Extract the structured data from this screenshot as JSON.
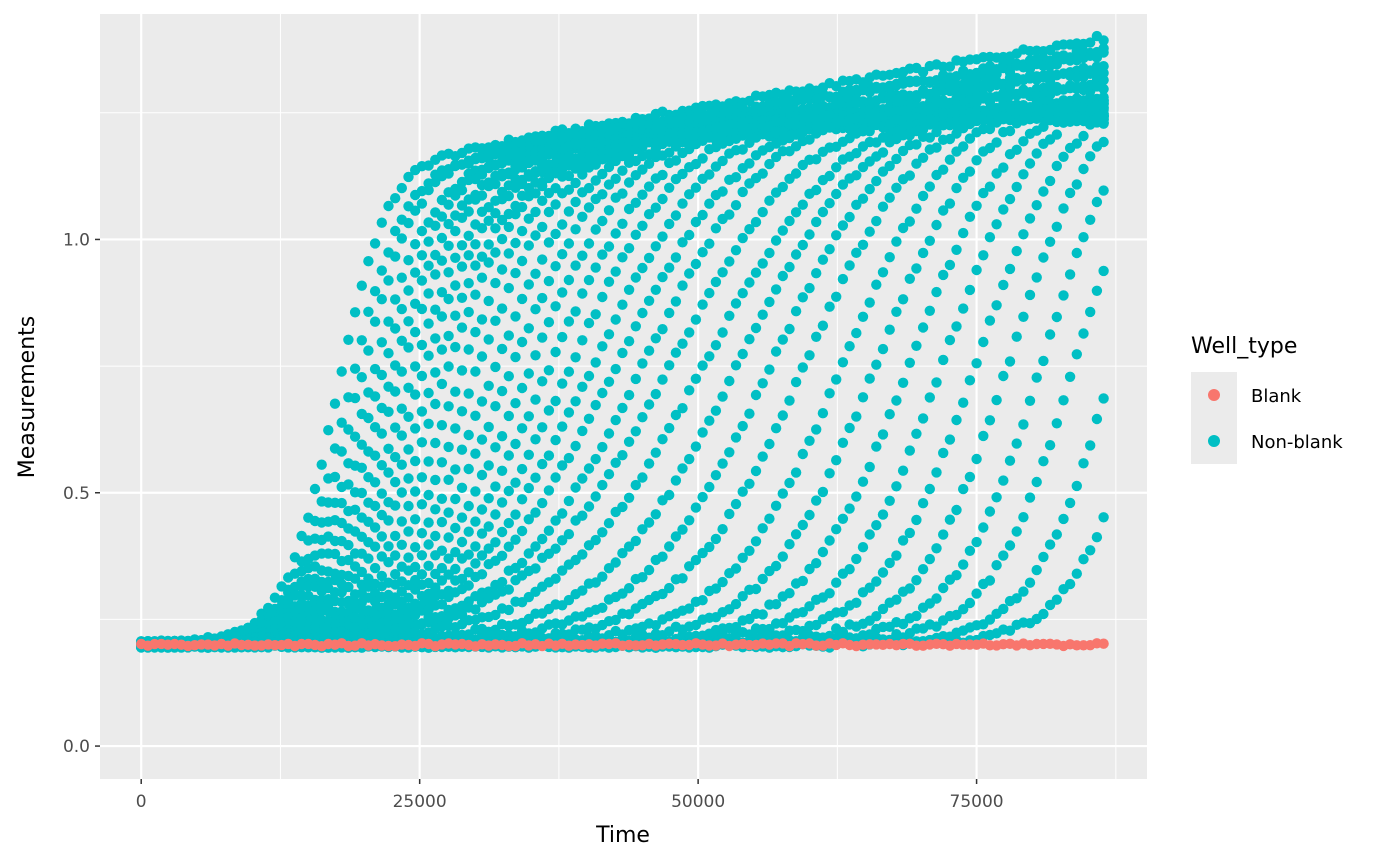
{
  "chart_data": {
    "type": "scatter",
    "title": "",
    "xlabel": "Time",
    "ylabel": "Measurements",
    "xlim": [
      -3700,
      90300
    ],
    "ylim": [
      -0.065,
      1.445
    ],
    "x_ticks": [
      0,
      25000,
      50000,
      75000
    ],
    "x_tick_labels": [
      "0",
      "25000",
      "50000",
      "75000"
    ],
    "y_ticks": [
      0.0,
      0.5,
      1.0
    ],
    "y_tick_labels": [
      "0.0",
      "0.5",
      "1.0"
    ],
    "grid": true,
    "panel_background": "#ebebeb",
    "grid_color": "#ffffff",
    "legend": {
      "title": "Well_type",
      "position": "right",
      "entries": [
        {
          "label": "Blank",
          "color": "#f8766d"
        },
        {
          "label": "Non-blank",
          "color": "#00bfc4"
        }
      ]
    },
    "sampling": {
      "start": 0,
      "end": 86700,
      "step": 600
    },
    "series": [
      {
        "name": "Non-blank",
        "color": "#00bfc4",
        "baseline": 0.2,
        "curves": [
          {
            "midpoint": 17500,
            "rate": 0.00042,
            "plateau": 1.18,
            "tail": 1.41
          },
          {
            "midpoint": 18500,
            "rate": 0.00038,
            "plateau": 1.17,
            "tail": 1.39
          },
          {
            "midpoint": 19300,
            "rate": 0.00036,
            "plateau": 1.18,
            "tail": 1.38
          },
          {
            "midpoint": 20200,
            "rate": 0.00033,
            "plateau": 1.17,
            "tail": 1.36
          },
          {
            "midpoint": 21000,
            "rate": 0.00031,
            "plateau": 1.18,
            "tail": 1.35
          },
          {
            "midpoint": 21800,
            "rate": 0.0003,
            "plateau": 1.17,
            "tail": 1.33
          },
          {
            "midpoint": 22700,
            "rate": 0.00029,
            "plateau": 1.18,
            "tail": 1.32
          },
          {
            "midpoint": 23600,
            "rate": 0.00028,
            "plateau": 1.17,
            "tail": 1.3
          },
          {
            "midpoint": 24600,
            "rate": 0.00027,
            "plateau": 1.18,
            "tail": 1.29
          },
          {
            "midpoint": 25600,
            "rate": 0.00026,
            "plateau": 1.18,
            "tail": 1.28
          },
          {
            "midpoint": 26800,
            "rate": 0.00025,
            "plateau": 1.2,
            "tail": 1.27
          },
          {
            "midpoint": 28200,
            "rate": 0.00024,
            "plateau": 1.21,
            "tail": 1.26
          },
          {
            "midpoint": 29600,
            "rate": 0.00023,
            "plateau": 1.22,
            "tail": 1.26
          },
          {
            "midpoint": 31200,
            "rate": 0.00022,
            "plateau": 1.23,
            "tail": 1.25
          },
          {
            "midpoint": 32800,
            "rate": 0.00021,
            "plateau": 1.24,
            "tail": 1.24
          },
          {
            "midpoint": 34500,
            "rate": 0.0002,
            "plateau": 1.25,
            "tail": 1.23
          },
          {
            "midpoint": 36300,
            "rate": 0.00019,
            "plateau": 1.26,
            "tail": 1.22
          },
          {
            "midpoint": 38200,
            "rate": 0.00018,
            "plateau": 1.27,
            "tail": 1.21
          },
          {
            "midpoint": 40300,
            "rate": 0.00017,
            "plateau": 1.28,
            "tail": 1.2
          },
          {
            "midpoint": 42500,
            "rate": 0.00016,
            "plateau": 1.29,
            "tail": 1.19
          },
          {
            "midpoint": 45000,
            "rate": 0.00016,
            "plateau": 1.3,
            "tail": 1.18
          },
          {
            "midpoint": 47500,
            "rate": 0.00015,
            "plateau": 1.3,
            "tail": 1.17
          },
          {
            "midpoint": 50500,
            "rate": 0.00015,
            "plateau": 1.3,
            "tail": 1.17
          },
          {
            "midpoint": 53500,
            "rate": 0.00016,
            "plateau": 1.3,
            "tail": 1.17
          },
          {
            "midpoint": 56500,
            "rate": 0.00017,
            "plateau": 1.3,
            "tail": 1.17
          },
          {
            "midpoint": 59500,
            "rate": 0.00018,
            "plateau": 1.3,
            "tail": 1.17
          },
          {
            "midpoint": 63000,
            "rate": 0.00019,
            "plateau": 1.31,
            "tail": 1.17
          },
          {
            "midpoint": 66000,
            "rate": 0.0002,
            "plateau": 1.31,
            "tail": 1.17
          },
          {
            "midpoint": 69000,
            "rate": 0.00021,
            "plateau": 1.31,
            "tail": 1.17
          },
          {
            "midpoint": 72000,
            "rate": 0.00022,
            "plateau": 1.32,
            "tail": 1.17
          },
          {
            "midpoint": 75000,
            "rate": 0.00023,
            "plateau": 1.32,
            "tail": 1.17
          },
          {
            "midpoint": 78000,
            "rate": 0.00024,
            "plateau": 1.33,
            "tail": 1.17
          },
          {
            "midpoint": 81000,
            "rate": 0.00025,
            "plateau": 1.33,
            "tail": 1.17
          },
          {
            "midpoint": 84000,
            "rate": 0.00026,
            "plateau": 1.34,
            "tail": 1.17
          },
          {
            "midpoint": 87500,
            "rate": 0.00027,
            "plateau": 1.34,
            "tail": 1.17
          },
          {
            "midpoint": 91000,
            "rate": 0.00028,
            "plateau": 1.34,
            "tail": 1.17
          }
        ]
      },
      {
        "name": "Blank",
        "color": "#f8766d",
        "baseline": 0.2,
        "curves": [
          {
            "constant": 0.2
          }
        ]
      }
    ]
  }
}
